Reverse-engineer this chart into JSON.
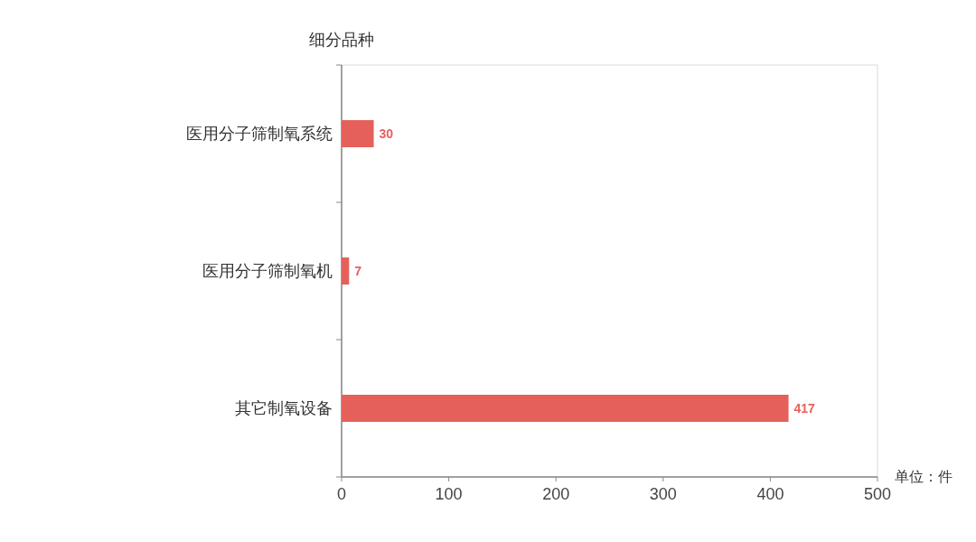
{
  "chart_data": {
    "type": "bar",
    "orientation": "horizontal",
    "ylabel": "细分品种",
    "xlabel": "单位：件",
    "categories": [
      "医用分子筛制氧系统",
      "医用分子筛制氧机",
      "其它制氧设备"
    ],
    "values": [
      30,
      7,
      417
    ],
    "color": "#e5605a",
    "data_labels": true,
    "xlim": [
      0,
      500
    ],
    "xticks": [
      0,
      100,
      200,
      300,
      400,
      500
    ],
    "grid": false
  }
}
